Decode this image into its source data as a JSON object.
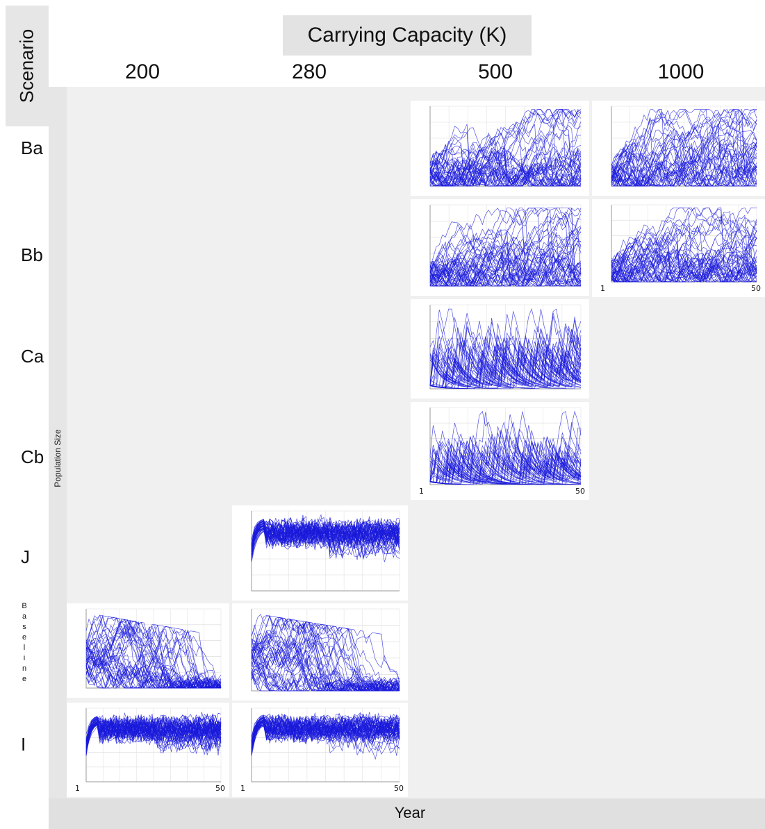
{
  "header": {
    "title": "Carrying Capacity (K)",
    "scenario_label": "Scenario",
    "columns": [
      "200",
      "280",
      "500",
      "1000"
    ]
  },
  "rows": [
    "Ba",
    "Bb",
    "Ca",
    "Cb",
    "J",
    "B\na\ns\ne\nl\ni\nn\ne",
    "I"
  ],
  "axes": {
    "ylabel": "Population Size",
    "xlabel": "Year",
    "x_start": "1",
    "x_end": "50"
  },
  "colors": {
    "line": "#1a1adb",
    "panel_bg": "#ffffff",
    "grid_bg": "#f0f0f0"
  },
  "chart_data": [
    {
      "type": "line",
      "scenario": "Ba",
      "K": "500",
      "x_range": [
        1,
        50
      ],
      "pattern": "fluctuating"
    },
    {
      "type": "line",
      "scenario": "Ba",
      "K": "1000",
      "x_range": [
        1,
        50
      ],
      "pattern": "fluctuating"
    },
    {
      "type": "line",
      "scenario": "Bb",
      "K": "500",
      "x_range": [
        1,
        50
      ],
      "pattern": "fluctuating"
    },
    {
      "type": "line",
      "scenario": "Bb",
      "K": "1000",
      "x_range": [
        1,
        50
      ],
      "pattern": "fluctuating"
    },
    {
      "type": "line",
      "scenario": "Ca",
      "K": "500",
      "x_range": [
        1,
        50
      ],
      "pattern": "spiky"
    },
    {
      "type": "line",
      "scenario": "Cb",
      "K": "500",
      "x_range": [
        1,
        50
      ],
      "pattern": "spiky"
    },
    {
      "type": "line",
      "scenario": "J",
      "K": "280",
      "x_range": [
        1,
        50
      ],
      "pattern": "saturated"
    },
    {
      "type": "line",
      "scenario": "Baseline",
      "K": "200",
      "x_range": [
        1,
        50
      ],
      "pattern": "declining"
    },
    {
      "type": "line",
      "scenario": "Baseline",
      "K": "280",
      "x_range": [
        1,
        50
      ],
      "pattern": "declining"
    },
    {
      "type": "line",
      "scenario": "I",
      "K": "200",
      "x_range": [
        1,
        50
      ],
      "pattern": "saturated"
    },
    {
      "type": "line",
      "scenario": "I",
      "K": "280",
      "x_range": [
        1,
        50
      ],
      "pattern": "saturated"
    }
  ]
}
